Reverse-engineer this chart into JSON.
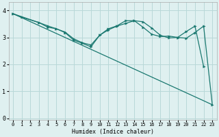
{
  "bg_color": "#dff0f0",
  "grid_color": "#b8d8d8",
  "line_color": "#1a7870",
  "xlabel": "Humidex (Indice chaleur)",
  "ylim": [
    -0.05,
    4.3
  ],
  "xlim": [
    -0.5,
    23.5
  ],
  "yticks": [
    0,
    1,
    2,
    3,
    4
  ],
  "xticks": [
    0,
    1,
    2,
    3,
    4,
    5,
    6,
    7,
    8,
    9,
    10,
    11,
    12,
    13,
    14,
    15,
    16,
    17,
    18,
    19,
    20,
    21,
    22,
    23
  ],
  "line1_x": [
    0,
    1,
    3,
    4,
    5,
    6,
    7,
    8,
    9,
    10,
    11,
    12,
    13,
    14,
    15,
    16,
    17,
    18,
    19,
    20,
    21,
    22
  ],
  "line1_y": [
    3.88,
    3.75,
    3.55,
    3.43,
    3.32,
    3.2,
    2.95,
    2.8,
    2.72,
    3.08,
    3.32,
    3.43,
    3.62,
    3.62,
    3.38,
    3.12,
    3.03,
    3.05,
    3.0,
    3.22,
    3.42,
    1.92
  ],
  "line2_x": [
    0,
    3,
    4,
    5,
    6,
    7,
    8,
    9,
    10,
    11,
    12,
    13,
    14,
    15,
    16,
    17,
    18,
    19,
    20,
    21,
    22,
    23
  ],
  "line2_y": [
    3.88,
    3.55,
    3.38,
    3.32,
    3.18,
    2.9,
    2.78,
    2.65,
    3.08,
    3.28,
    3.42,
    3.52,
    3.62,
    3.58,
    3.35,
    3.08,
    2.98,
    3.0,
    2.97,
    3.18,
    3.42,
    0.5
  ],
  "line3_x": [
    0,
    22,
    23
  ],
  "line3_y": [
    3.88,
    0.65,
    0.5
  ]
}
